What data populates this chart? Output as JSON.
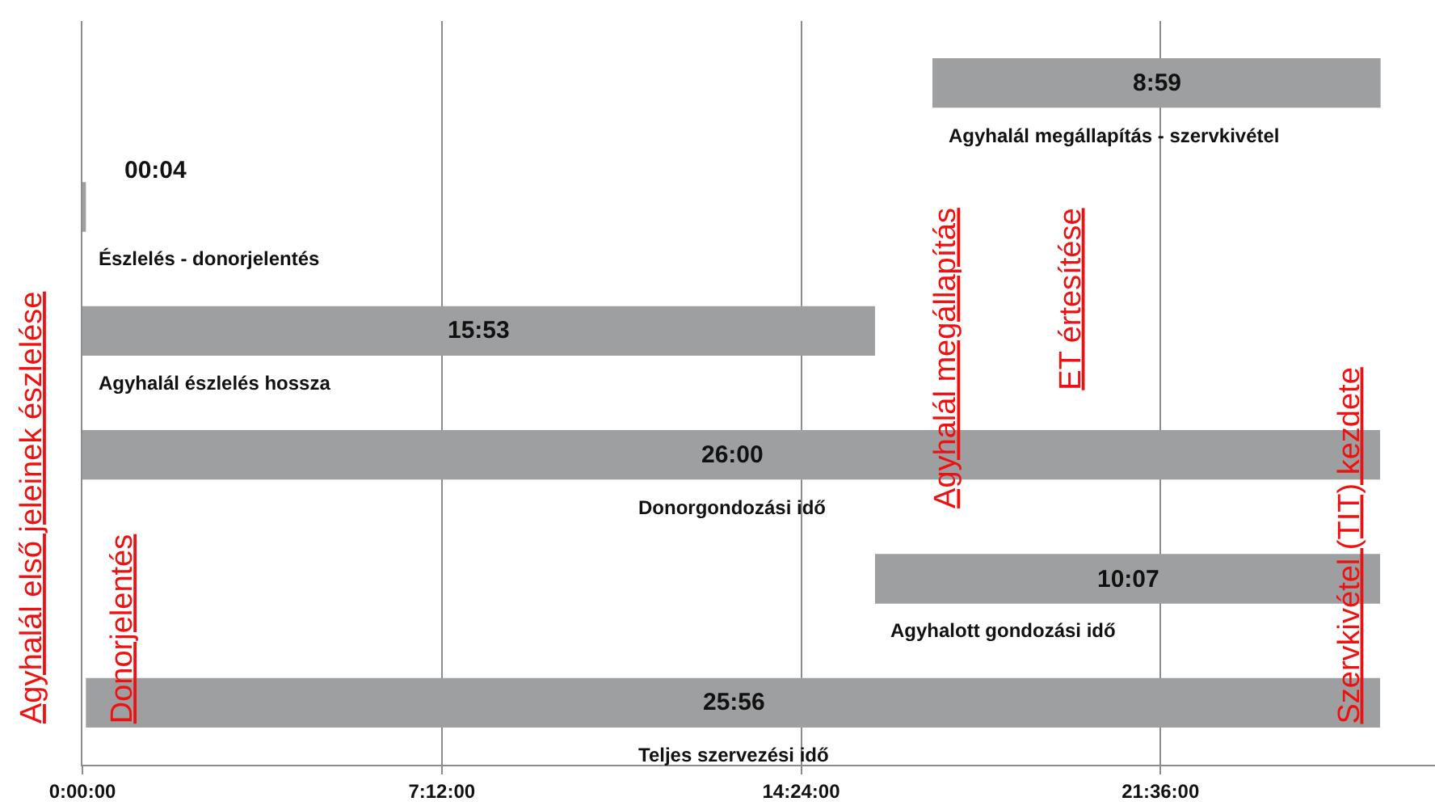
{
  "chart_data": {
    "type": "bar",
    "orientation": "horizontal",
    "categories": [
      "Agyhalál megállapítás - szervkivétel",
      "Észlelés - donorjelentés",
      "Agyhalál észlelés hossza",
      "Donorgondozási idő",
      "Agyhalott gondozási idő",
      "Teljes szervezési idő"
    ],
    "values": [
      8.98,
      0.07,
      15.88,
      26.0,
      10.12,
      25.93
    ],
    "base": [
      17.03,
      0,
      0,
      0,
      15.88,
      0.07
    ],
    "value_labels": [
      "8:59",
      "00:04",
      "15:53",
      "26:00",
      "10:07",
      "25:56"
    ],
    "color": "#9d9fa0",
    "xlim": [
      0,
      27.1
    ],
    "xticks": [
      {
        "value": 0,
        "label": "0:00:00"
      },
      {
        "value": 7.2,
        "label": "7:12:00"
      },
      {
        "value": 14.4,
        "label": "14:24:00"
      },
      {
        "value": 21.6,
        "label": "21:36:00"
      }
    ],
    "grid": "x",
    "legend": false,
    "tick_labels": "x",
    "annotations": [
      "Agyhalál első jeleinek észlelése",
      "Donorjelentés",
      "Agyhalál megállapítás",
      "ET értesítése",
      "Szervkivétel (TIT) kezdete"
    ]
  }
}
